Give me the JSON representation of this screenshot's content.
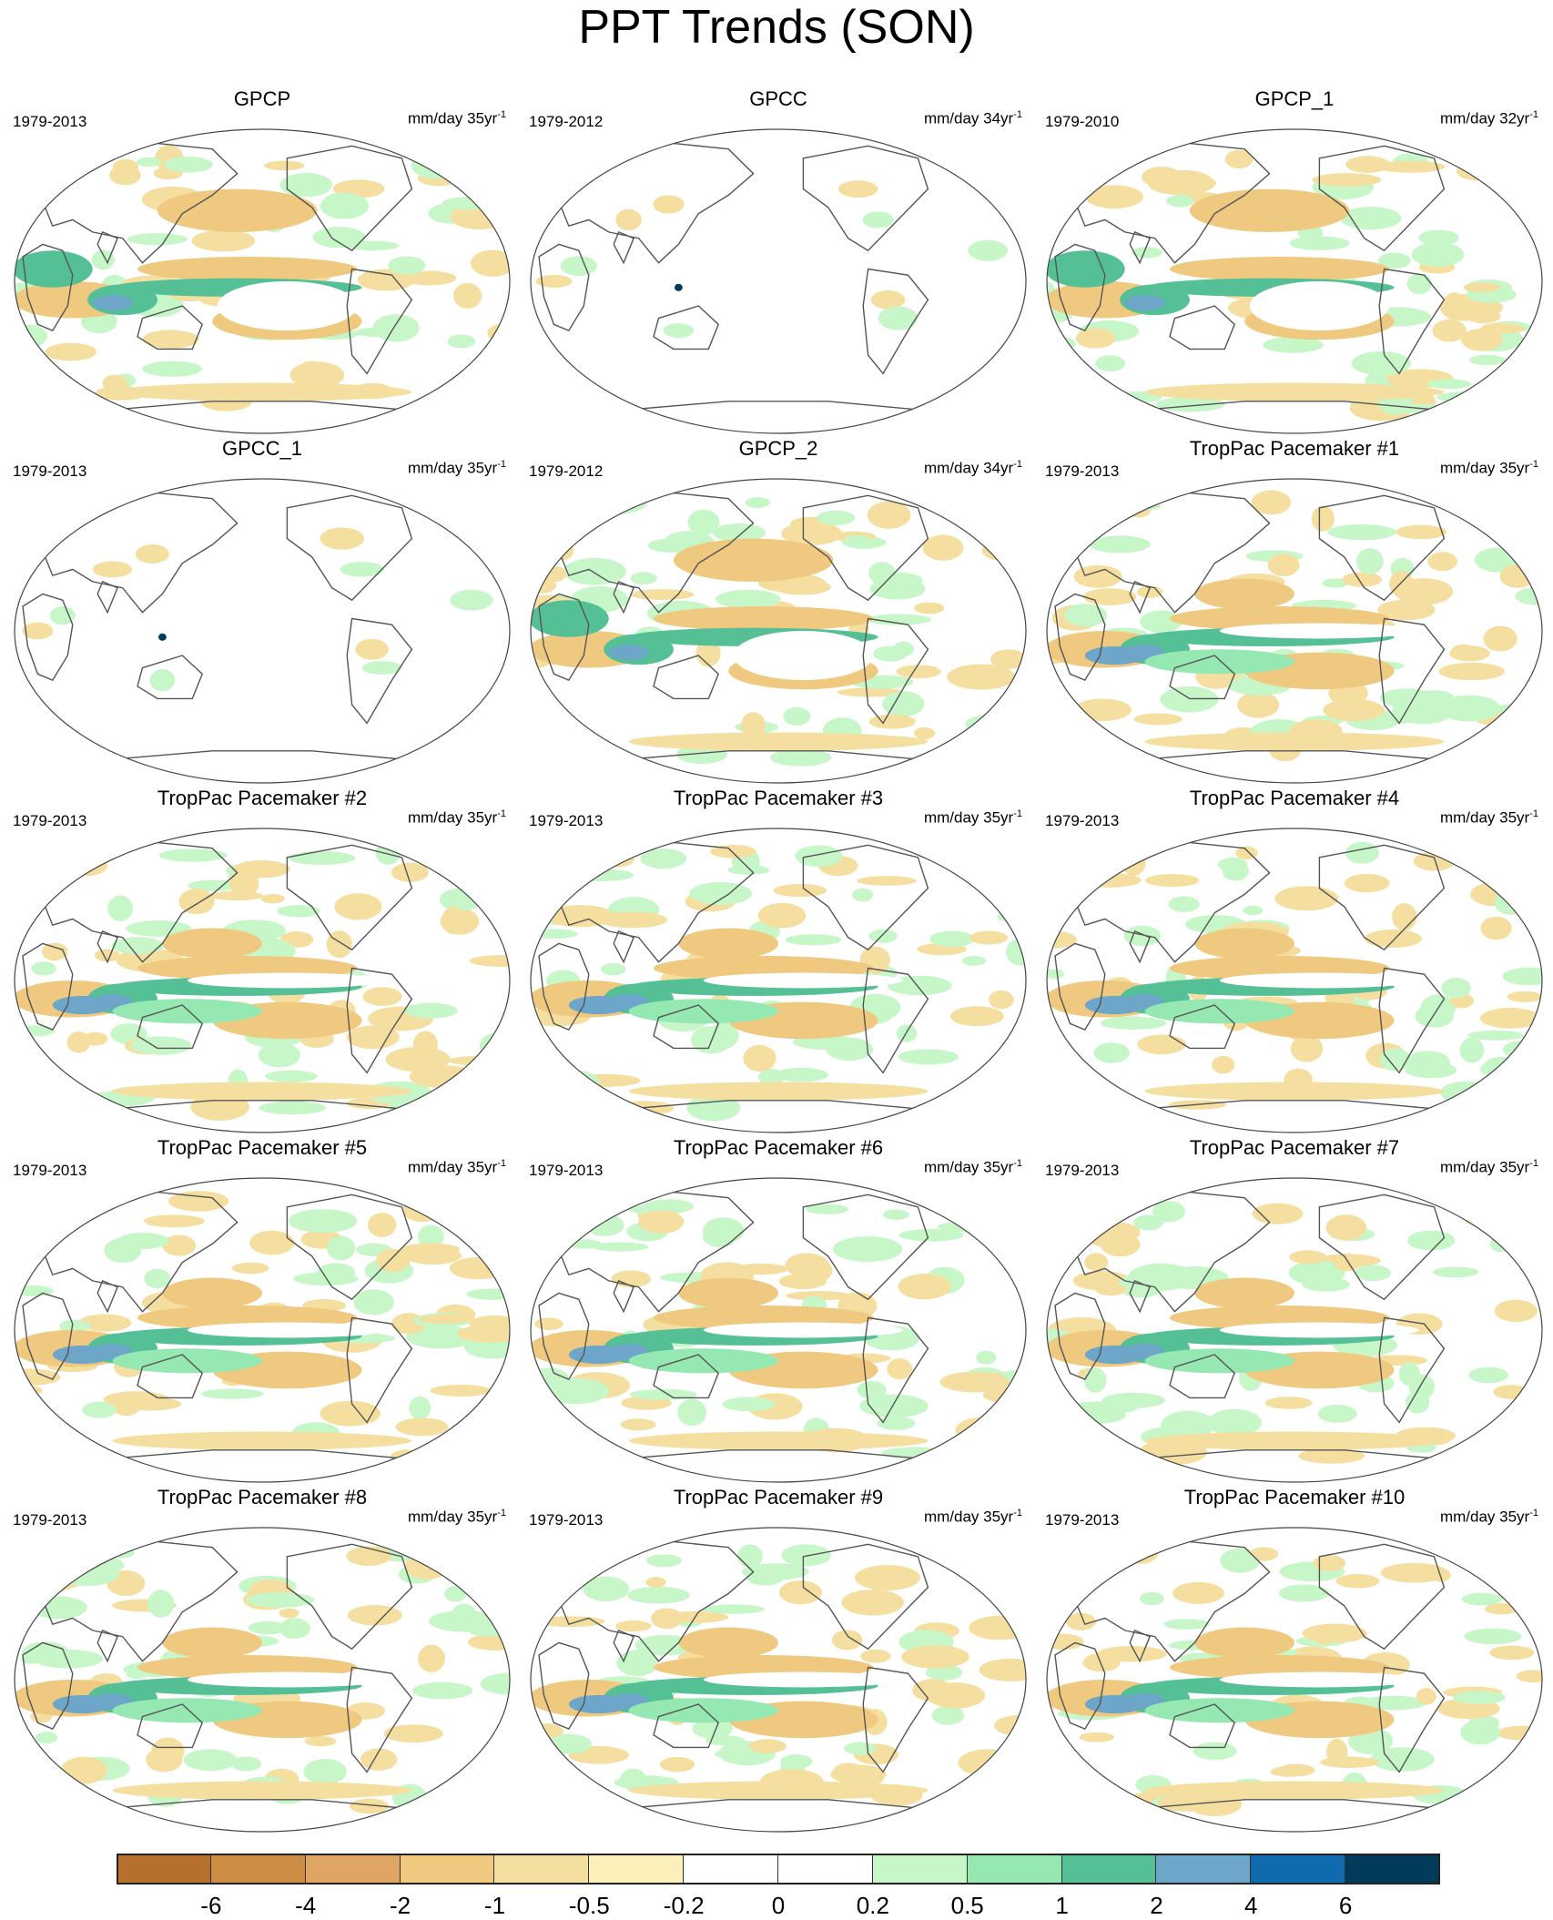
{
  "title": "PPT Trends (SON)",
  "colors": {
    "levels": [
      "#b5702d",
      "#cd8d45",
      "#dea564",
      "#f0c981",
      "#f5dfa0",
      "#fbf0b9",
      "#ffffff",
      "#ffffff",
      "#c7f7c9",
      "#95e8b1",
      "#55bf96",
      "#6da6c8",
      "#0f6aae",
      "#023a5a"
    ],
    "coast": "#555555"
  },
  "colorbar": {
    "labels": [
      "-6",
      "-4",
      "-2",
      "-1",
      "-0.5",
      "-0.2",
      "0",
      "0.2",
      "0.5",
      "1",
      "2",
      "4",
      "6"
    ]
  },
  "panels": [
    {
      "title": "GPCP",
      "period": "1979-2013",
      "units": "mm/day 35yr",
      "style": "obs"
    },
    {
      "title": "GPCC",
      "period": "1979-2012",
      "units": "mm/day 34yr",
      "style": "land"
    },
    {
      "title": "GPCP_1",
      "period": "1979-2010",
      "units": "mm/day 32yr",
      "style": "obs"
    },
    {
      "title": "GPCC_1",
      "period": "1979-2013",
      "units": "mm/day 35yr",
      "style": "land"
    },
    {
      "title": "GPCP_2",
      "period": "1979-2012",
      "units": "mm/day 34yr",
      "style": "obs"
    },
    {
      "title": "TropPac Pacemaker #1",
      "period": "1979-2013",
      "units": "mm/day 35yr",
      "style": "model"
    },
    {
      "title": "TropPac Pacemaker #2",
      "period": "1979-2013",
      "units": "mm/day 35yr",
      "style": "model"
    },
    {
      "title": "TropPac Pacemaker #3",
      "period": "1979-2013",
      "units": "mm/day 35yr",
      "style": "model"
    },
    {
      "title": "TropPac Pacemaker #4",
      "period": "1979-2013",
      "units": "mm/day 35yr",
      "style": "model"
    },
    {
      "title": "TropPac Pacemaker #5",
      "period": "1979-2013",
      "units": "mm/day 35yr",
      "style": "model"
    },
    {
      "title": "TropPac Pacemaker #6",
      "period": "1979-2013",
      "units": "mm/day 35yr",
      "style": "model"
    },
    {
      "title": "TropPac Pacemaker #7",
      "period": "1979-2013",
      "units": "mm/day 35yr",
      "style": "model"
    },
    {
      "title": "TropPac Pacemaker #8",
      "period": "1979-2013",
      "units": "mm/day 35yr",
      "style": "model"
    },
    {
      "title": "TropPac Pacemaker #9",
      "period": "1979-2013",
      "units": "mm/day 35yr",
      "style": "model"
    },
    {
      "title": "TropPac Pacemaker #10",
      "period": "1979-2013",
      "units": "mm/day 35yr",
      "style": "model"
    }
  ]
}
